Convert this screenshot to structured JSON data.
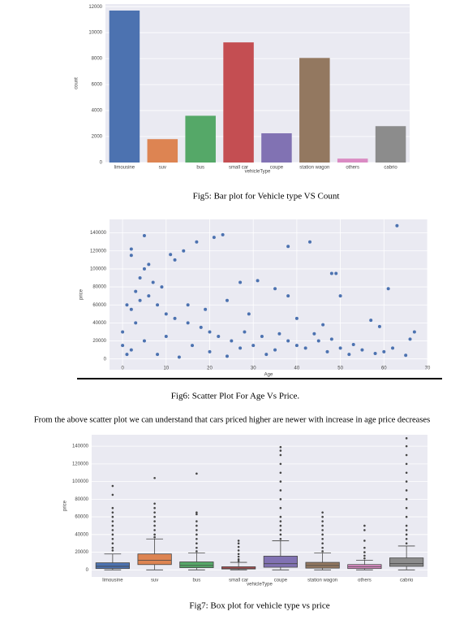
{
  "chart_data": [
    {
      "type": "bar",
      "x_label": "vehicleType",
      "y_label": "count",
      "categories": [
        "limousine",
        "suv",
        "bus",
        "small car",
        "coupe",
        "station wagon",
        "others",
        "cabrio"
      ],
      "values": [
        11700,
        1800,
        3600,
        9250,
        2250,
        8050,
        300,
        2800
      ],
      "colors": [
        "#4c72b0",
        "#dd8452",
        "#55a868",
        "#c44e52",
        "#8172b3",
        "#937860",
        "#da8bc3",
        "#8c8c8c"
      ],
      "ylim": [
        0,
        12200
      ],
      "yticks": [
        0,
        2000,
        4000,
        6000,
        8000,
        10000,
        12000
      ],
      "grid": true
    },
    {
      "type": "scatter",
      "x_label": "Age",
      "y_label": "price",
      "color": "#4c72b0",
      "x": [
        2,
        2,
        5,
        11,
        12,
        14,
        17,
        21,
        23,
        38,
        43,
        63,
        48,
        49,
        27,
        31,
        35,
        38,
        50,
        61,
        67,
        66,
        57,
        59,
        5,
        6,
        4,
        7,
        9,
        3,
        1,
        2,
        0,
        0,
        1,
        3,
        4,
        6,
        8,
        10,
        12,
        15,
        18,
        20,
        22,
        25,
        28,
        30,
        32,
        35,
        38,
        40,
        42,
        45,
        47,
        50,
        52,
        55,
        58,
        60,
        62,
        65,
        2,
        5,
        8,
        10,
        13,
        16,
        20,
        24,
        27,
        33,
        36,
        44,
        48,
        53,
        15,
        19,
        24,
        29,
        40,
        46
      ],
      "values": [
        122000,
        115000,
        137000,
        116000,
        110000,
        120000,
        130000,
        135000,
        138000,
        125000,
        130000,
        148000,
        95000,
        95000,
        85000,
        87000,
        78000,
        70000,
        70000,
        78000,
        30000,
        22000,
        43000,
        36000,
        100000,
        105000,
        90000,
        85000,
        80000,
        75000,
        60000,
        55000,
        30000,
        15000,
        5000,
        40000,
        65000,
        70000,
        60000,
        50000,
        45000,
        40000,
        35000,
        30000,
        25000,
        20000,
        30000,
        15000,
        25000,
        10000,
        20000,
        15000,
        12000,
        20000,
        8000,
        12000,
        5000,
        10000,
        6000,
        8000,
        12000,
        4000,
        10000,
        20000,
        5000,
        25000,
        2000,
        15000,
        8000,
        3000,
        12000,
        5000,
        28000,
        28000,
        22000,
        16000,
        60000,
        55000,
        65000,
        50000,
        45000,
        38000
      ],
      "xlim": [
        -3,
        70
      ],
      "xticks": [
        0,
        10,
        20,
        30,
        40,
        50,
        60,
        70
      ],
      "ylim": [
        -12000,
        155000
      ],
      "yticks": [
        0,
        20000,
        40000,
        60000,
        80000,
        100000,
        120000,
        140000
      ],
      "grid": true
    },
    {
      "type": "box",
      "x_label": "vehicleType",
      "y_label": "price",
      "categories": [
        "limousine",
        "suv",
        "bus",
        "small car",
        "coupe",
        "station wagon",
        "others",
        "cabrio"
      ],
      "colors": [
        "#4c72b0",
        "#dd8452",
        "#55a868",
        "#c44e52",
        "#8172b3",
        "#937860",
        "#da8bc3",
        "#8c8c8c"
      ],
      "boxes": [
        {
          "low": 0,
          "q1": 1500,
          "median": 4000,
          "q3": 8000,
          "high": 18000,
          "outliers": [
            22000,
            25000,
            30000,
            35000,
            40000,
            45000,
            50000,
            55000,
            60000,
            65000,
            70000,
            85000,
            95000
          ]
        },
        {
          "low": 0,
          "q1": 6000,
          "median": 11000,
          "q3": 18000,
          "high": 35000,
          "outliers": [
            37000,
            40000,
            45000,
            50000,
            55000,
            60000,
            65000,
            70000,
            75000,
            104000
          ]
        },
        {
          "low": 0,
          "q1": 2500,
          "median": 5000,
          "q3": 9000,
          "high": 19000,
          "outliers": [
            21000,
            25000,
            30000,
            35000,
            40000,
            45000,
            50000,
            55000,
            63000,
            65000,
            109000
          ]
        },
        {
          "low": 0,
          "q1": 1000,
          "median": 2000,
          "q3": 3500,
          "high": 8500,
          "outliers": [
            10000,
            12000,
            15000,
            18000,
            22000,
            26000,
            30000,
            33000
          ]
        },
        {
          "low": 0,
          "q1": 3000,
          "median": 7000,
          "q3": 15500,
          "high": 33000,
          "outliers": [
            35000,
            40000,
            45000,
            50000,
            55000,
            60000,
            70000,
            80000,
            90000,
            100000,
            110000,
            120000,
            130000,
            135000,
            139000
          ]
        },
        {
          "low": 0,
          "q1": 2000,
          "median": 5000,
          "q3": 8500,
          "high": 19000,
          "outliers": [
            21000,
            25000,
            30000,
            35000,
            40000,
            45000,
            50000,
            55000,
            60000,
            65000
          ]
        },
        {
          "low": 0,
          "q1": 1500,
          "median": 3500,
          "q3": 6000,
          "high": 11000,
          "outliers": [
            13000,
            16000,
            20000,
            25000,
            33000,
            45000,
            50000
          ]
        },
        {
          "low": 0,
          "q1": 4000,
          "median": 7000,
          "q3": 13500,
          "high": 27000,
          "outliers": [
            30000,
            35000,
            40000,
            45000,
            50000,
            60000,
            70000,
            80000,
            90000,
            100000,
            110000,
            120000,
            130000,
            140000,
            149000
          ]
        }
      ],
      "ylim": [
        -8000,
        153000
      ],
      "yticks": [
        0,
        20000,
        40000,
        60000,
        80000,
        100000,
        120000,
        140000
      ],
      "grid": true
    }
  ],
  "captions": [
    "Fig5: Bar plot for  Vehicle type VS Count",
    "Fig6: Scatter Plot For Age Vs Price.",
    "Fig7: Box plot for vehicle type vs price"
  ],
  "paragraph": "From the above scatter plot we can understand that cars priced higher are newer with increase in age price decreases"
}
